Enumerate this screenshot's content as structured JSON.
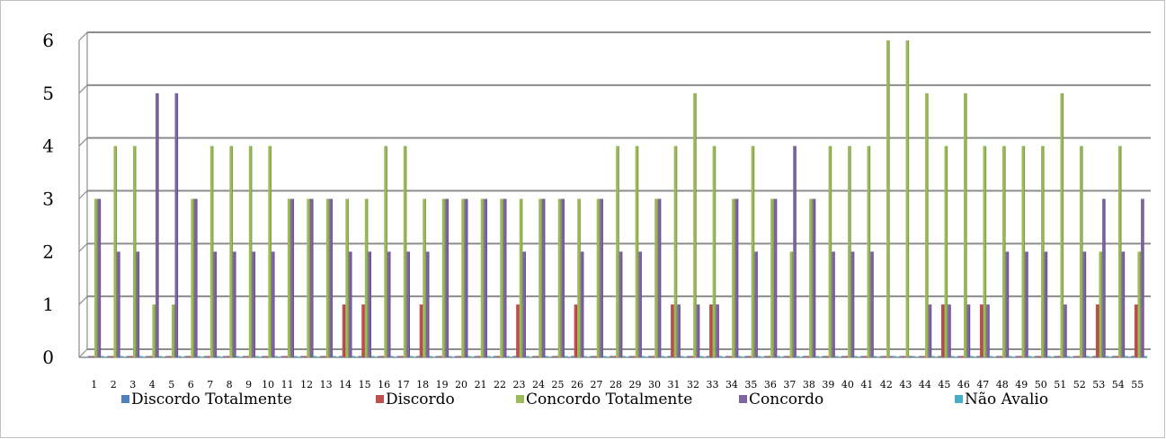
{
  "chart_data": {
    "type": "bar",
    "categories": [
      "1",
      "2",
      "3",
      "4",
      "5",
      "6",
      "7",
      "8",
      "9",
      "10",
      "11",
      "12",
      "13",
      "14",
      "15",
      "16",
      "17",
      "18",
      "19",
      "20",
      "21",
      "22",
      "23",
      "24",
      "25",
      "26",
      "27",
      "28",
      "29",
      "30",
      "31",
      "32",
      "33",
      "34",
      "35",
      "36",
      "37",
      "38",
      "39",
      "40",
      "41",
      "42",
      "43",
      "44",
      "45",
      "46",
      "47",
      "48",
      "49",
      "50",
      "51",
      "52",
      "53",
      "54",
      "55"
    ],
    "ylim": [
      0,
      6
    ],
    "yticks": [
      "0",
      "1",
      "2",
      "3",
      "4",
      "5",
      "6"
    ],
    "grid": true,
    "legend_position": "bottom",
    "title": "",
    "xlabel": "",
    "ylabel": "",
    "series": [
      {
        "name": "Discordo Totalmente",
        "color": "#4f81bd",
        "values": [
          0,
          0,
          0,
          0,
          0,
          0,
          0,
          0,
          0,
          0,
          0,
          0,
          0,
          0,
          0,
          0,
          0,
          0,
          0,
          0,
          0,
          0,
          0,
          0,
          0,
          0,
          0,
          0,
          0,
          0,
          0,
          0,
          0,
          0,
          0,
          0,
          0,
          0,
          0,
          0,
          0,
          0,
          0,
          0,
          0,
          0,
          0,
          0,
          0,
          0,
          0,
          0,
          0,
          0,
          0
        ]
      },
      {
        "name": "Discordo",
        "color": "#c0504d",
        "values": [
          0,
          0,
          0,
          0,
          0,
          0,
          0,
          0,
          0,
          0,
          0,
          0,
          0,
          1,
          1,
          0,
          0,
          1,
          0,
          0,
          0,
          0,
          1,
          0,
          0,
          1,
          0,
          0,
          0,
          0,
          1,
          0,
          1,
          0,
          0,
          0,
          0,
          0,
          0,
          0,
          0,
          0,
          0,
          0,
          1,
          0,
          1,
          0,
          0,
          0,
          0,
          0,
          1,
          0,
          1
        ]
      },
      {
        "name": "Concordo Totalmente",
        "color": "#9bbb59",
        "values": [
          3,
          4,
          4,
          1,
          1,
          3,
          4,
          4,
          4,
          4,
          3,
          3,
          3,
          3,
          3,
          4,
          4,
          3,
          3,
          3,
          3,
          3,
          3,
          3,
          3,
          3,
          3,
          4,
          4,
          3,
          4,
          5,
          4,
          3,
          4,
          3,
          2,
          3,
          4,
          4,
          4,
          6,
          6,
          5,
          4,
          5,
          4,
          4,
          4,
          4,
          5,
          4,
          2,
          4,
          2
        ]
      },
      {
        "name": "Concordo",
        "color": "#8064a2",
        "values": [
          3,
          2,
          2,
          5,
          5,
          3,
          2,
          2,
          2,
          2,
          3,
          3,
          3,
          2,
          2,
          2,
          2,
          2,
          3,
          3,
          3,
          3,
          2,
          3,
          3,
          2,
          3,
          2,
          2,
          3,
          1,
          1,
          1,
          3,
          2,
          3,
          4,
          3,
          2,
          2,
          2,
          0,
          0,
          1,
          1,
          1,
          1,
          2,
          2,
          2,
          1,
          2,
          3,
          2,
          3
        ]
      },
      {
        "name": "Não Avalio",
        "color": "#4bacc6",
        "values": [
          0,
          0,
          0,
          0,
          0,
          0,
          0,
          0,
          0,
          0,
          0,
          0,
          0,
          0,
          0,
          0,
          0,
          0,
          0,
          0,
          0,
          0,
          0,
          0,
          0,
          0,
          0,
          0,
          0,
          0,
          0,
          0,
          0,
          0,
          0,
          0,
          0,
          0,
          0,
          0,
          0,
          0,
          0,
          0,
          0,
          0,
          0,
          0,
          0,
          0,
          0,
          0,
          0,
          0,
          0
        ]
      }
    ]
  }
}
